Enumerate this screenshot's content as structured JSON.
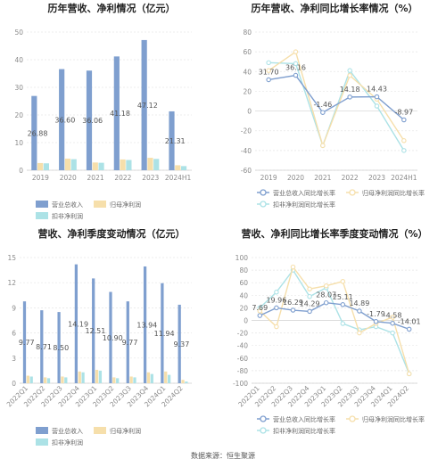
{
  "source": "数据来源：恒生聚源",
  "colors": {
    "revenue": "#7f9fcf",
    "net_profit": "#f6dfab",
    "deducted_profit": "#ace2e6",
    "grid": "#e6e6e6",
    "axis": "#cfcfcf"
  },
  "chart_data": [
    {
      "type": "bar",
      "title": "历年营收、净利情况（亿元）",
      "categories": [
        "2019",
        "2020",
        "2021",
        "2022",
        "2023",
        "2024H1"
      ],
      "ylim": [
        0,
        50
      ],
      "yticks": [
        0,
        10,
        20,
        30,
        40,
        50
      ],
      "series": [
        {
          "name": "营业总收入",
          "values": [
            26.88,
            36.6,
            36.06,
            41.18,
            47.12,
            21.31
          ],
          "labels": [
            "26.88",
            "36.60",
            "36.06",
            "41.18",
            "47.12",
            "21.31"
          ]
        },
        {
          "name": "归母净利润",
          "values": [
            2.6,
            4.2,
            2.8,
            3.9,
            4.5,
            1.8
          ]
        },
        {
          "name": "扣非净利润",
          "values": [
            2.5,
            4.0,
            2.7,
            3.7,
            4.1,
            1.5
          ]
        }
      ],
      "legend": "bottom",
      "grid": true
    },
    {
      "type": "line",
      "title": "历年营收、净利同比增长率情况（%）",
      "categories": [
        "2019",
        "2020",
        "2021",
        "2022",
        "2023",
        "2024H1"
      ],
      "ylim": [
        -60,
        80
      ],
      "yticks": [
        -60,
        -40,
        -20,
        0,
        20,
        40,
        60,
        80
      ],
      "series": [
        {
          "name": "营业总收入同比增长率",
          "values": [
            31.7,
            36.16,
            -1.46,
            14.18,
            14.43,
            -8.97
          ],
          "labels": [
            "31.70",
            "36.16",
            "-1.46",
            "14.18",
            "14.43",
            "-8.97"
          ]
        },
        {
          "name": "归母净利润同比增长率",
          "values": [
            41,
            60,
            -35,
            36,
            12,
            -30
          ]
        },
        {
          "name": "扣非净利润同比增长率",
          "values": [
            49,
            48,
            -35,
            41,
            5,
            -40
          ]
        }
      ],
      "legend": "bottom",
      "grid": true
    },
    {
      "type": "bar",
      "title": "营收、净利季度变动情况（亿元）",
      "categories": [
        "2022Q1",
        "2022Q2",
        "2022Q3",
        "2022Q4",
        "2023Q1",
        "2023Q2",
        "2023Q3",
        "2023Q4",
        "2024Q1",
        "2024Q2"
      ],
      "ylim": [
        0,
        15
      ],
      "yticks": [
        0,
        3,
        6,
        9,
        12,
        15
      ],
      "series": [
        {
          "name": "营业总收入",
          "values": [
            9.77,
            8.71,
            8.5,
            14.19,
            12.51,
            10.9,
            9.77,
            13.94,
            11.94,
            9.37
          ],
          "labels": [
            "9.77",
            "8.71",
            "8.50",
            "14.19",
            "12.51",
            "10.90",
            "9.77",
            "13.94",
            "11.94",
            "9.37"
          ]
        },
        {
          "name": "归母净利润",
          "values": [
            0.9,
            0.7,
            0.8,
            1.4,
            1.6,
            0.7,
            0.8,
            1.3,
            1.4,
            0.4
          ]
        },
        {
          "name": "扣非净利润",
          "values": [
            0.8,
            0.6,
            0.7,
            1.3,
            1.5,
            0.6,
            0.7,
            1.1,
            1.0,
            0.2
          ]
        }
      ],
      "legend": "bottom",
      "grid": true
    },
    {
      "type": "line",
      "title": "营收、净利同比增长率季度变动情况（%）",
      "categories": [
        "2022Q1",
        "2022Q2",
        "2022Q3",
        "2022Q4",
        "2023Q1",
        "2023Q2",
        "2023Q3",
        "2023Q4",
        "2024Q1",
        "2024Q2"
      ],
      "ylim": [
        -100,
        100
      ],
      "yticks": [
        -100,
        -80,
        -60,
        -40,
        -20,
        0,
        20,
        40,
        60,
        80,
        100
      ],
      "series": [
        {
          "name": "营业总收入同比增长率",
          "values": [
            7.69,
            19.96,
            16.29,
            14.29,
            28.07,
            25.11,
            14.89,
            -1.79,
            -4.58,
            -14.01
          ],
          "labels": [
            "7.69",
            "19.96",
            "16.29",
            "14.29",
            "28.07",
            "25.11",
            "14.89",
            "-1.79",
            "-4.58",
            "-14.01"
          ]
        },
        {
          "name": "归母净利润同比增长率",
          "values": [
            15,
            -10,
            85,
            50,
            55,
            62,
            -20,
            -5,
            5,
            -85
          ]
        },
        {
          "name": "扣非净利润同比增长率",
          "values": [
            20,
            45,
            80,
            38,
            52,
            -5,
            -15,
            -10,
            -20,
            -85
          ]
        }
      ],
      "legend": "bottom",
      "grid": true
    }
  ]
}
